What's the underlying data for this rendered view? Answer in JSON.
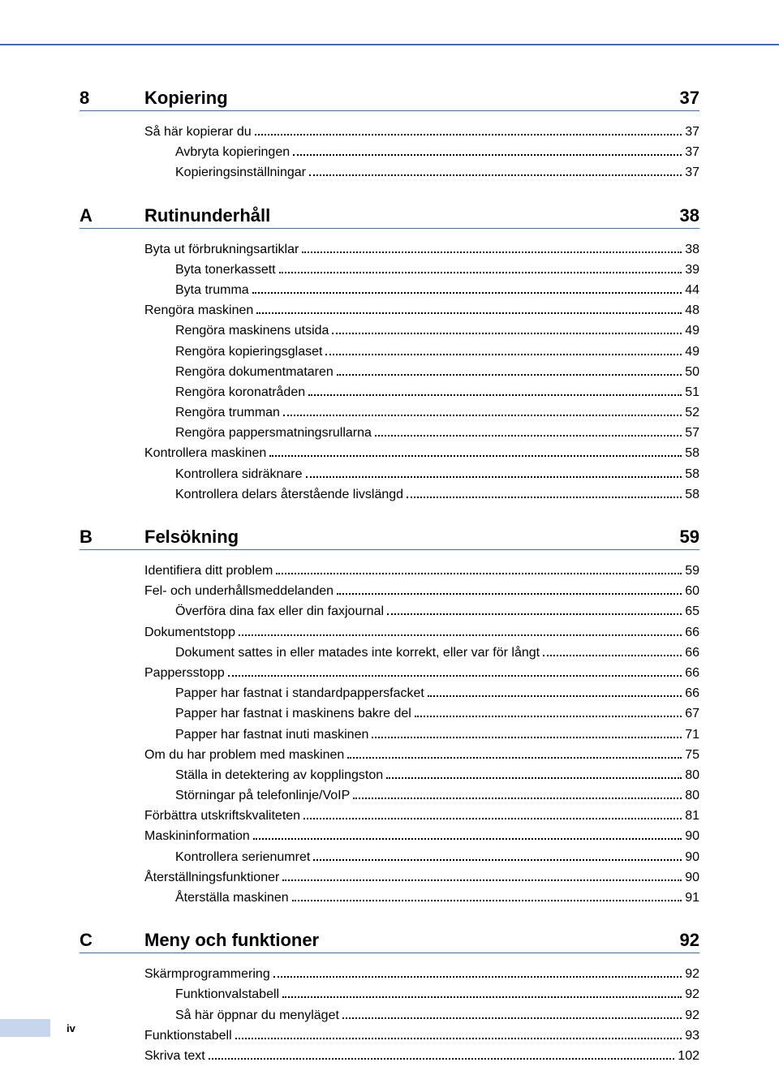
{
  "page_number": "iv",
  "colors": {
    "rule": "#3b6fc6",
    "footer_tab": "#c7d5ed",
    "text": "#000000",
    "background": "#ffffff"
  },
  "typography": {
    "section_fontsize": 22,
    "entry_fontsize": 16,
    "footer_fontsize": 13
  },
  "sections": [
    {
      "label": "8",
      "title": "Kopiering",
      "page": "37",
      "entries": [
        {
          "text": "Så här kopierar du",
          "page": "37",
          "level": 0
        },
        {
          "text": "Avbryta kopieringen",
          "page": "37",
          "level": 1
        },
        {
          "text": "Kopieringsinställningar",
          "page": "37",
          "level": 1
        }
      ]
    },
    {
      "label": "A",
      "title": "Rutinunderhåll",
      "page": "38",
      "entries": [
        {
          "text": "Byta ut förbrukningsartiklar",
          "page": "38",
          "level": 0
        },
        {
          "text": "Byta tonerkassett",
          "page": "39",
          "level": 1
        },
        {
          "text": "Byta trumma",
          "page": "44",
          "level": 1
        },
        {
          "text": "Rengöra maskinen",
          "page": "48",
          "level": 0
        },
        {
          "text": "Rengöra maskinens utsida",
          "page": "49",
          "level": 1
        },
        {
          "text": "Rengöra kopieringsglaset",
          "page": "49",
          "level": 1
        },
        {
          "text": "Rengöra dokumentmataren",
          "page": "50",
          "level": 1
        },
        {
          "text": "Rengöra koronatråden",
          "page": "51",
          "level": 1
        },
        {
          "text": "Rengöra trumman",
          "page": "52",
          "level": 1
        },
        {
          "text": "Rengöra pappersmatningsrullarna",
          "page": "57",
          "level": 1
        },
        {
          "text": "Kontrollera maskinen",
          "page": "58",
          "level": 0
        },
        {
          "text": "Kontrollera sidräknare",
          "page": "58",
          "level": 1
        },
        {
          "text": "Kontrollera delars återstående livslängd",
          "page": "58",
          "level": 1
        }
      ]
    },
    {
      "label": "B",
      "title": "Felsökning",
      "page": "59",
      "entries": [
        {
          "text": "Identifiera ditt problem",
          "page": "59",
          "level": 0
        },
        {
          "text": "Fel- och underhållsmeddelanden",
          "page": "60",
          "level": 0
        },
        {
          "text": "Överföra dina fax eller din faxjournal",
          "page": "65",
          "level": 1
        },
        {
          "text": "Dokumentstopp",
          "page": "66",
          "level": 0
        },
        {
          "text": "Dokument sattes in eller matades inte korrekt, eller var för långt",
          "page": "66",
          "level": 1
        },
        {
          "text": "Pappersstopp",
          "page": "66",
          "level": 0
        },
        {
          "text": "Papper har fastnat i standardpappersfacket",
          "page": "66",
          "level": 1
        },
        {
          "text": "Papper har fastnat i maskinens bakre del",
          "page": "67",
          "level": 1
        },
        {
          "text": "Papper har fastnat inuti maskinen",
          "page": "71",
          "level": 1
        },
        {
          "text": "Om du har problem med maskinen",
          "page": "75",
          "level": 0
        },
        {
          "text": "Ställa in detektering av kopplingston",
          "page": "80",
          "level": 1
        },
        {
          "text": "Störningar på telefonlinje/VoIP",
          "page": "80",
          "level": 1
        },
        {
          "text": "Förbättra utskriftskvaliteten",
          "page": "81",
          "level": 0
        },
        {
          "text": "Maskininformation",
          "page": "90",
          "level": 0
        },
        {
          "text": "Kontrollera serienumret",
          "page": "90",
          "level": 1
        },
        {
          "text": "Återställningsfunktioner",
          "page": "90",
          "level": 0
        },
        {
          "text": "Återställa maskinen",
          "page": "91",
          "level": 1
        }
      ]
    },
    {
      "label": "C",
      "title": "Meny och funktioner",
      "page": "92",
      "entries": [
        {
          "text": "Skärmprogrammering",
          "page": "92",
          "level": 0
        },
        {
          "text": "Funktionvalstabell",
          "page": "92",
          "level": 1
        },
        {
          "text": "Så här öppnar du menyläget",
          "page": "92",
          "level": 1
        },
        {
          "text": "Funktionstabell",
          "page": "93",
          "level": 0
        },
        {
          "text": "Skriva text",
          "page": "102",
          "level": 0
        }
      ]
    }
  ]
}
